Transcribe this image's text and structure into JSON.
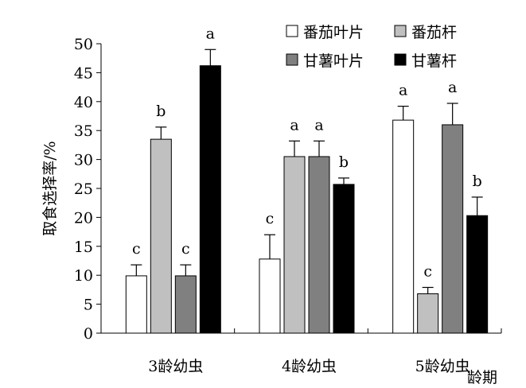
{
  "chart_data": {
    "type": "bar",
    "title": "",
    "xlabel": "龄期",
    "ylabel": "取食选择率/%",
    "ylim": [
      0,
      50
    ],
    "yticks": [
      0,
      5,
      10,
      15,
      20,
      25,
      30,
      35,
      40,
      45,
      50
    ],
    "categories": [
      "3龄幼虫",
      "4龄幼虫",
      "5龄幼虫"
    ],
    "grid": false,
    "legend_position": "top-right",
    "series": [
      {
        "name": "番茄叶片",
        "color": "#ffffff",
        "values": [
          9.9,
          12.8,
          36.8
        ],
        "errors": [
          1.9,
          4.2,
          2.4
        ],
        "labels": [
          "c",
          "c",
          "a"
        ]
      },
      {
        "name": "番茄杆",
        "color": "#c0c0c0",
        "values": [
          33.5,
          30.5,
          6.8
        ],
        "errors": [
          2.1,
          2.7,
          1.1
        ],
        "labels": [
          "b",
          "a",
          "c"
        ]
      },
      {
        "name": "甘薯叶片",
        "color": "#808080",
        "values": [
          9.9,
          30.5,
          36.0
        ],
        "errors": [
          1.9,
          2.7,
          3.7
        ],
        "labels": [
          "c",
          "a",
          "a"
        ]
      },
      {
        "name": "甘薯杆",
        "color": "#000000",
        "values": [
          46.2,
          25.7,
          20.3
        ],
        "errors": [
          2.8,
          1.1,
          3.2
        ],
        "labels": [
          "a",
          "b",
          "b"
        ]
      }
    ]
  }
}
